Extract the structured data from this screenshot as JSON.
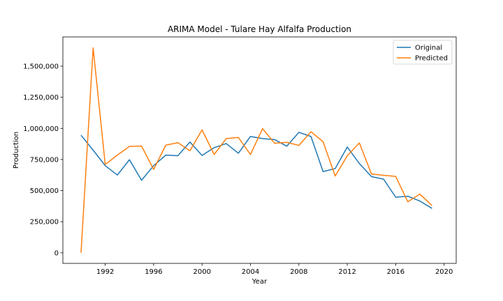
{
  "chart_data": {
    "type": "line",
    "title": "ARIMA Model - Tulare Hay Alfalfa Production",
    "xlabel": "Year",
    "ylabel": "Production",
    "xlim": [
      1988.5,
      2021.0
    ],
    "ylim": [
      -85000,
      1735000
    ],
    "x_ticks": [
      1992,
      1996,
      2000,
      2004,
      2008,
      2012,
      2016,
      2020
    ],
    "x_tick_labels": [
      "1992",
      "1996",
      "2000",
      "2004",
      "2008",
      "2012",
      "2016",
      "2020"
    ],
    "y_ticks": [
      0,
      250000,
      500000,
      750000,
      1000000,
      1250000,
      1500000
    ],
    "y_tick_labels": [
      "0",
      "250,000",
      "500,000",
      "750,000",
      "1,000,000",
      "1,250,000",
      "1,500,000"
    ],
    "grid": false,
    "legend_position": "top-right",
    "x": [
      1990,
      1991,
      1992,
      1993,
      1994,
      1995,
      1996,
      1997,
      1998,
      1999,
      2000,
      2001,
      2002,
      2003,
      2004,
      2005,
      2006,
      2007,
      2008,
      2009,
      2010,
      2011,
      2012,
      2013,
      2014,
      2015,
      2016,
      2017,
      2018,
      2019
    ],
    "series": [
      {
        "name": "Original",
        "color": "#1f77b4",
        "values": [
          945000,
          825000,
          700000,
          625000,
          748000,
          583000,
          700000,
          785000,
          780000,
          890000,
          782000,
          845000,
          878000,
          800000,
          935000,
          918000,
          910000,
          857000,
          968000,
          935000,
          653000,
          677000,
          850000,
          717000,
          612000,
          592000,
          447000,
          455000,
          416000,
          357000
        ]
      },
      {
        "name": "Predicted",
        "color": "#ff7f0e",
        "values": [
          0,
          1647000,
          710000,
          785000,
          855000,
          858000,
          670000,
          865000,
          885000,
          820000,
          988000,
          790000,
          918000,
          927000,
          790000,
          998000,
          880000,
          888000,
          863000,
          973000,
          893000,
          617000,
          780000,
          883000,
          633000,
          623000,
          614000,
          410000,
          472000,
          380000
        ]
      }
    ]
  }
}
